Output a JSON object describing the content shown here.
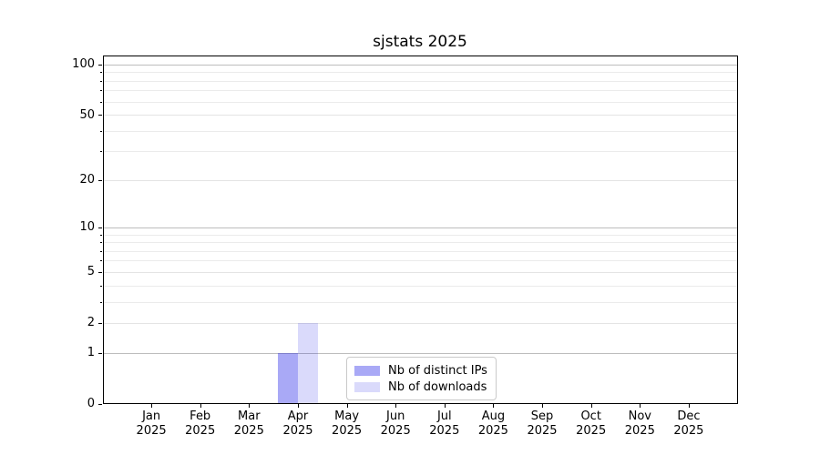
{
  "chart_data": {
    "type": "bar",
    "title": "sjstats 2025",
    "xlabel": "",
    "ylabel": "",
    "year": "2025",
    "months": [
      "Jan",
      "Feb",
      "Mar",
      "Apr",
      "May",
      "Jun",
      "Jul",
      "Aug",
      "Sep",
      "Oct",
      "Nov",
      "Dec"
    ],
    "series": [
      {
        "name": "Nb of distinct IPs",
        "color": "rgba(10,10,230,0.35)",
        "values": [
          0,
          0,
          0,
          1,
          0,
          0,
          0,
          0,
          0,
          0,
          0,
          0
        ]
      },
      {
        "name": "Nb of downloads",
        "color": "rgba(10,10,230,0.15)",
        "values": [
          0,
          0,
          0,
          2,
          0,
          0,
          0,
          0,
          0,
          0,
          0,
          0
        ]
      }
    ],
    "y_axis": {
      "scale": "log1p",
      "min": 0,
      "max": 113,
      "labeled_ticks": [
        0,
        1,
        2,
        5,
        10,
        20,
        50,
        100
      ],
      "minor_ticks": [
        3,
        4,
        6,
        7,
        8,
        9,
        30,
        40,
        60,
        70,
        80,
        90
      ],
      "decade_gridlines": [
        1,
        10,
        100
      ]
    },
    "grid": "horizontal",
    "legend": {
      "position": "lower center inside",
      "entries": [
        "Nb of distinct IPs",
        "Nb of downloads"
      ]
    }
  },
  "colors": {
    "background": "#ffffff",
    "spine": "#000000",
    "grid_decade": "#bdbdbd",
    "grid_minor": "#ebebeb",
    "bar_distinct_ips": "rgba(10,10,230,0.35)",
    "bar_downloads": "rgba(10,10,230,0.15)"
  }
}
